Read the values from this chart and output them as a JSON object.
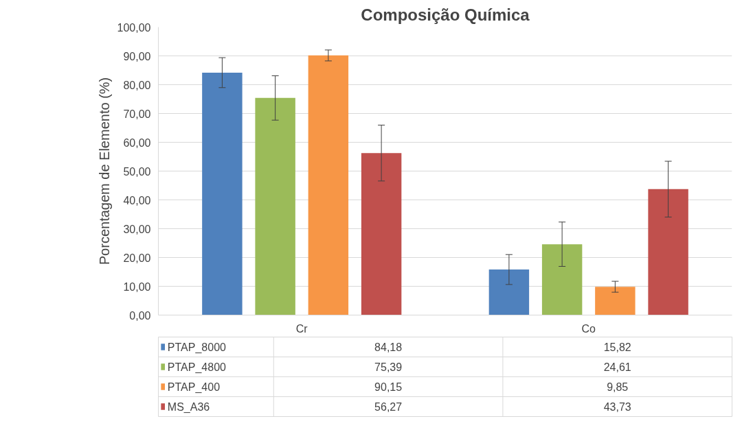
{
  "chart_data": {
    "type": "bar",
    "title": "Composição Química",
    "ylabel": "Porcentagem de Elemento (%)",
    "categories": [
      "Cr",
      "Co"
    ],
    "series": [
      {
        "name": "PTAP_8000",
        "color": "#4f81bd",
        "values": [
          84.18,
          15.82
        ],
        "value_labels": [
          "84,18",
          "15,82"
        ],
        "errors": [
          5.2,
          5.2
        ]
      },
      {
        "name": "PTAP_4800",
        "color": "#9bbb59",
        "values": [
          75.39,
          24.61
        ],
        "value_labels": [
          "75,39",
          "24,61"
        ],
        "errors": [
          7.7,
          7.7
        ]
      },
      {
        "name": "PTAP_400",
        "color": "#f79646",
        "values": [
          90.15,
          9.85
        ],
        "value_labels": [
          "90,15",
          "9,85"
        ],
        "errors": [
          1.9,
          1.9
        ]
      },
      {
        "name": "MS_A36",
        "color": "#c0504d",
        "values": [
          56.27,
          43.73
        ],
        "value_labels": [
          "56,27",
          "43,73"
        ],
        "errors": [
          9.7,
          9.7
        ]
      }
    ],
    "ylim": [
      0,
      100
    ],
    "yticks": [
      {
        "value": 0,
        "label": "0,00"
      },
      {
        "value": 10,
        "label": "10,00"
      },
      {
        "value": 20,
        "label": "20,00"
      },
      {
        "value": 30,
        "label": "30,00"
      },
      {
        "value": 40,
        "label": "40,00"
      },
      {
        "value": 50,
        "label": "50,00"
      },
      {
        "value": 60,
        "label": "60,00"
      },
      {
        "value": 70,
        "label": "70,00"
      },
      {
        "value": 80,
        "label": "80,00"
      },
      {
        "value": 90,
        "label": "90,00"
      },
      {
        "value": 100,
        "label": "100,00"
      }
    ],
    "grid": "y",
    "legend": "bottom"
  }
}
